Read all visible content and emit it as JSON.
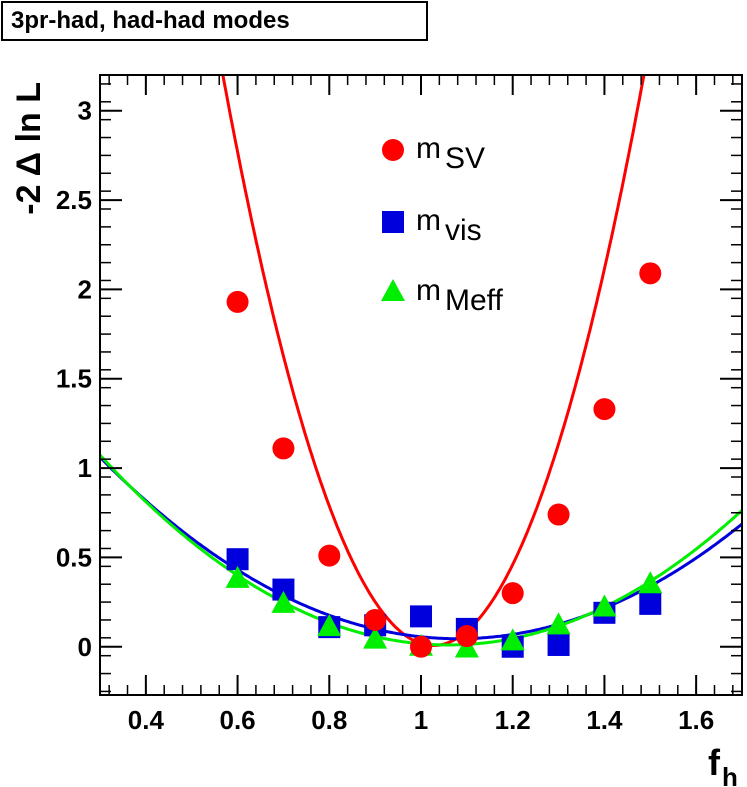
{
  "chart_data": {
    "type": "scatter",
    "title": "3pr-had, had-had modes",
    "xlabel": "f",
    "xlabel_sub": "h",
    "ylabel": "-2 Δ ln L",
    "xlim": [
      0.3,
      1.7
    ],
    "ylim": [
      -0.27,
      3.2
    ],
    "x_ticks": [
      0.4,
      0.6,
      0.8,
      1.0,
      1.2,
      1.4,
      1.6
    ],
    "x_tick_labels": [
      "0.4",
      "0.6",
      "0.8",
      "1",
      "1.2",
      "1.4",
      "1.6"
    ],
    "y_ticks": [
      0,
      0.5,
      1,
      1.5,
      2,
      2.5,
      3
    ],
    "y_tick_labels": [
      "0",
      "0.5",
      "1",
      "1.5",
      "2",
      "2.5",
      "3"
    ],
    "legend_position": "top-center",
    "series": [
      {
        "name": "m",
        "sub": "SV",
        "marker": "circle",
        "color": "#ff0000",
        "x": [
          0.6,
          0.7,
          0.8,
          0.9,
          1.0,
          1.1,
          1.2,
          1.3,
          1.4,
          1.5
        ],
        "y": [
          1.93,
          1.11,
          0.51,
          0.15,
          0.0,
          0.06,
          0.3,
          0.74,
          1.33,
          2.09
        ],
        "fit": {
          "a": 15.15,
          "x0": 1.027,
          "c": 0.007
        }
      },
      {
        "name": "m",
        "sub": "vis",
        "marker": "square",
        "color": "#0000dd",
        "x": [
          0.6,
          0.7,
          0.8,
          0.9,
          1.0,
          1.1,
          1.2,
          1.3,
          1.4,
          1.5
        ],
        "y": [
          0.49,
          0.32,
          0.11,
          0.12,
          0.17,
          0.1,
          0.0,
          0.01,
          0.19,
          0.24
        ],
        "fit": {
          "a": 1.67,
          "x0": 1.08,
          "c": 0.045
        }
      },
      {
        "name": "m",
        "sub": "Meff",
        "marker": "triangle",
        "color": "#00ee00",
        "x": [
          0.6,
          0.7,
          0.8,
          0.9,
          1.0,
          1.1,
          1.2,
          1.3,
          1.4,
          1.5
        ],
        "y": [
          0.38,
          0.24,
          0.11,
          0.04,
          0.0,
          -0.01,
          0.03,
          0.12,
          0.22,
          0.35
        ],
        "fit": {
          "a": 1.84,
          "x0": 1.06,
          "c": 0.01
        }
      }
    ]
  }
}
